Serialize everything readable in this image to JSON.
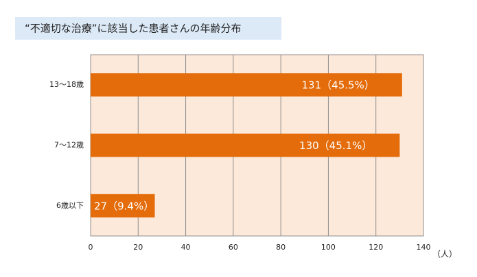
{
  "chart_data": {
    "type": "hbar",
    "title": "“不適切な治療”に該当した患者さんの年齢分布",
    "categories": [
      "13〜18歳",
      "7〜12歳",
      "6歳以下"
    ],
    "values": [
      131,
      130,
      27
    ],
    "value_labels": [
      "131（45.5%）",
      "130（45.1%）",
      "27（9.4%）"
    ],
    "color": "#e46c0a",
    "xlim": [
      0,
      140
    ],
    "xticks": [
      0,
      20,
      40,
      60,
      80,
      100,
      120,
      140
    ],
    "x_label": "（人）",
    "grid": true
  }
}
